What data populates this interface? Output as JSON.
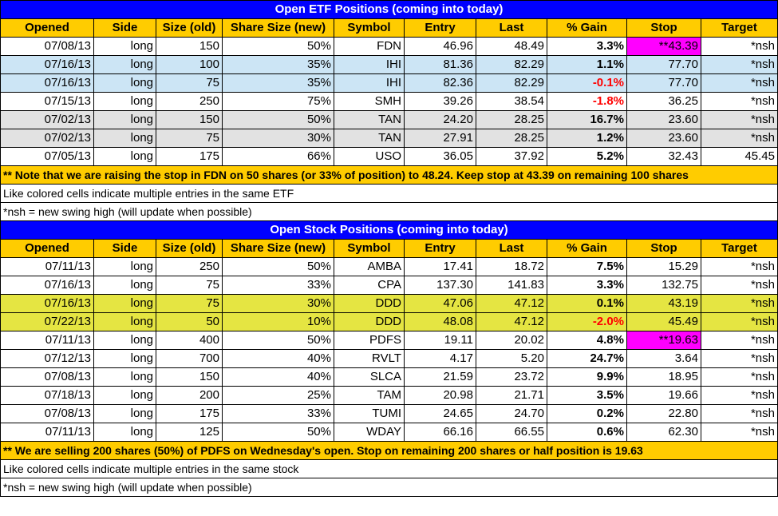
{
  "etf": {
    "title": "Open ETF Positions (coming into today)",
    "headers": [
      "Opened",
      "Side",
      "Size (old)",
      "Share Size (new)",
      "Symbol",
      "Entry",
      "Last",
      "% Gain",
      "Stop",
      "Target"
    ],
    "rows": [
      {
        "opened": "07/08/13",
        "side": "long",
        "size_old": "150",
        "share_new": "50%",
        "symbol": "FDN",
        "entry": "46.96",
        "last": "48.49",
        "gain": "3.3%",
        "stop": "**43.39",
        "target": "*nsh",
        "bg": "#ffffff",
        "neg": false,
        "stop_pink": true
      },
      {
        "opened": "07/16/13",
        "side": "long",
        "size_old": "100",
        "share_new": "35%",
        "symbol": "IHI",
        "entry": "81.36",
        "last": "82.29",
        "gain": "1.1%",
        "stop": "77.70",
        "target": "*nsh",
        "bg": "#cce5f5",
        "neg": false,
        "stop_pink": false
      },
      {
        "opened": "07/16/13",
        "side": "long",
        "size_old": "75",
        "share_new": "35%",
        "symbol": "IHI",
        "entry": "82.36",
        "last": "82.29",
        "gain": "-0.1%",
        "stop": "77.70",
        "target": "*nsh",
        "bg": "#cce5f5",
        "neg": true,
        "stop_pink": false
      },
      {
        "opened": "07/15/13",
        "side": "long",
        "size_old": "250",
        "share_new": "75%",
        "symbol": "SMH",
        "entry": "39.26",
        "last": "38.54",
        "gain": "-1.8%",
        "stop": "36.25",
        "target": "*nsh",
        "bg": "#ffffff",
        "neg": true,
        "stop_pink": false
      },
      {
        "opened": "07/02/13",
        "side": "long",
        "size_old": "150",
        "share_new": "50%",
        "symbol": "TAN",
        "entry": "24.20",
        "last": "28.25",
        "gain": "16.7%",
        "stop": "23.60",
        "target": "*nsh",
        "bg": "#e2e2e2",
        "neg": false,
        "stop_pink": false
      },
      {
        "opened": "07/02/13",
        "side": "long",
        "size_old": "75",
        "share_new": "30%",
        "symbol": "TAN",
        "entry": "27.91",
        "last": "28.25",
        "gain": "1.2%",
        "stop": "23.60",
        "target": "*nsh",
        "bg": "#e2e2e2",
        "neg": false,
        "stop_pink": false
      },
      {
        "opened": "07/05/13",
        "side": "long",
        "size_old": "175",
        "share_new": "66%",
        "symbol": "USO",
        "entry": "36.05",
        "last": "37.92",
        "gain": "5.2%",
        "stop": "32.43",
        "target": "45.45",
        "bg": "#ffffff",
        "neg": false,
        "stop_pink": false
      }
    ],
    "note": "** Note that we are raising the stop in FDN on 50 shares (or 33% of position) to 48.24.  Keep stop at 43.39 on remaining 100 shares",
    "line1": "Like colored cells indicate multiple entries in the same ETF",
    "line2": "*nsh = new swing high (will update when possible)"
  },
  "stock": {
    "title": "Open Stock Positions (coming into today)",
    "headers": [
      "Opened",
      "Side",
      "Size (old)",
      "Share Size (new)",
      "Symbol",
      "Entry",
      "Last",
      "% Gain",
      "Stop",
      "Target"
    ],
    "rows": [
      {
        "opened": "07/11/13",
        "side": "long",
        "size_old": "250",
        "share_new": "50%",
        "symbol": "AMBA",
        "entry": "17.41",
        "last": "18.72",
        "gain": "7.5%",
        "stop": "15.29",
        "target": "*nsh",
        "bg": "#ffffff",
        "neg": false,
        "stop_pink": false
      },
      {
        "opened": "07/16/13",
        "side": "long",
        "size_old": "75",
        "share_new": "33%",
        "symbol": "CPA",
        "entry": "137.30",
        "last": "141.83",
        "gain": "3.3%",
        "stop": "132.75",
        "target": "*nsh",
        "bg": "#ffffff",
        "neg": false,
        "stop_pink": false
      },
      {
        "opened": "07/16/13",
        "side": "long",
        "size_old": "75",
        "share_new": "30%",
        "symbol": "DDD",
        "entry": "47.06",
        "last": "47.12",
        "gain": "0.1%",
        "stop": "43.19",
        "target": "*nsh",
        "bg": "#e5e542",
        "neg": false,
        "stop_pink": false
      },
      {
        "opened": "07/22/13",
        "side": "long",
        "size_old": "50",
        "share_new": "10%",
        "symbol": "DDD",
        "entry": "48.08",
        "last": "47.12",
        "gain": "-2.0%",
        "stop": "45.49",
        "target": "*nsh",
        "bg": "#e5e542",
        "neg": true,
        "stop_pink": false
      },
      {
        "opened": "07/11/13",
        "side": "long",
        "size_old": "400",
        "share_new": "50%",
        "symbol": "PDFS",
        "entry": "19.11",
        "last": "20.02",
        "gain": "4.8%",
        "stop": "**19.63",
        "target": "*nsh",
        "bg": "#ffffff",
        "neg": false,
        "stop_pink": true
      },
      {
        "opened": "07/12/13",
        "side": "long",
        "size_old": "700",
        "share_new": "40%",
        "symbol": "RVLT",
        "entry": "4.17",
        "last": "5.20",
        "gain": "24.7%",
        "stop": "3.64",
        "target": "*nsh",
        "bg": "#ffffff",
        "neg": false,
        "stop_pink": false
      },
      {
        "opened": "07/08/13",
        "side": "long",
        "size_old": "150",
        "share_new": "40%",
        "symbol": "SLCA",
        "entry": "21.59",
        "last": "23.72",
        "gain": "9.9%",
        "stop": "18.95",
        "target": "*nsh",
        "bg": "#ffffff",
        "neg": false,
        "stop_pink": false
      },
      {
        "opened": "07/18/13",
        "side": "long",
        "size_old": "200",
        "share_new": "25%",
        "symbol": "TAM",
        "entry": "20.98",
        "last": "21.71",
        "gain": "3.5%",
        "stop": "19.66",
        "target": "*nsh",
        "bg": "#ffffff",
        "neg": false,
        "stop_pink": false
      },
      {
        "opened": "07/08/13",
        "side": "long",
        "size_old": "175",
        "share_new": "33%",
        "symbol": "TUMI",
        "entry": "24.65",
        "last": "24.70",
        "gain": "0.2%",
        "stop": "22.80",
        "target": "*nsh",
        "bg": "#ffffff",
        "neg": false,
        "stop_pink": false
      },
      {
        "opened": "07/11/13",
        "side": "long",
        "size_old": "125",
        "share_new": "50%",
        "symbol": "WDAY",
        "entry": "66.16",
        "last": "66.55",
        "gain": "0.6%",
        "stop": "62.30",
        "target": "*nsh",
        "bg": "#ffffff",
        "neg": false,
        "stop_pink": false
      }
    ],
    "note": "** We are selling 200 shares (50%) of PDFS on Wednesday's open.  Stop on remaining 200 shares or half position is 19.63",
    "line1": "Like colored cells indicate multiple entries in the same stock",
    "line2": "*nsh = new swing high (will update when possible)"
  },
  "colors": {
    "title_bg": "#0000ff",
    "header_bg": "#ffcc00",
    "negative": "#ff0000",
    "stop_highlight": "#ff00ff"
  }
}
